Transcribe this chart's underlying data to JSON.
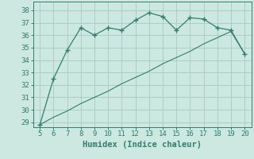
{
  "x": [
    5,
    6,
    7,
    8,
    9,
    10,
    11,
    12,
    13,
    14,
    15,
    16,
    17,
    18,
    19,
    20
  ],
  "y_main": [
    28.8,
    32.5,
    34.8,
    36.6,
    36.0,
    36.6,
    36.4,
    37.2,
    37.8,
    37.5,
    36.4,
    37.4,
    37.3,
    36.6,
    36.4,
    34.5
  ],
  "y_line2": [
    28.8,
    29.4,
    29.9,
    30.5,
    31.0,
    31.5,
    32.1,
    32.6,
    33.1,
    33.7,
    34.2,
    34.7,
    35.3,
    35.8,
    36.3,
    34.5
  ],
  "line_color": "#2e7f6e",
  "bg_color": "#cce8e0",
  "grid_color": "#aacfc7",
  "xlabel": "Humidex (Indice chaleur)",
  "xlim": [
    4.5,
    20.5
  ],
  "ylim": [
    28.6,
    38.7
  ],
  "yticks": [
    29,
    30,
    31,
    32,
    33,
    34,
    35,
    36,
    37,
    38
  ],
  "xticks": [
    5,
    6,
    7,
    8,
    9,
    10,
    11,
    12,
    13,
    14,
    15,
    16,
    17,
    18,
    19,
    20
  ],
  "tick_fontsize": 6.5,
  "xlabel_fontsize": 7.5
}
